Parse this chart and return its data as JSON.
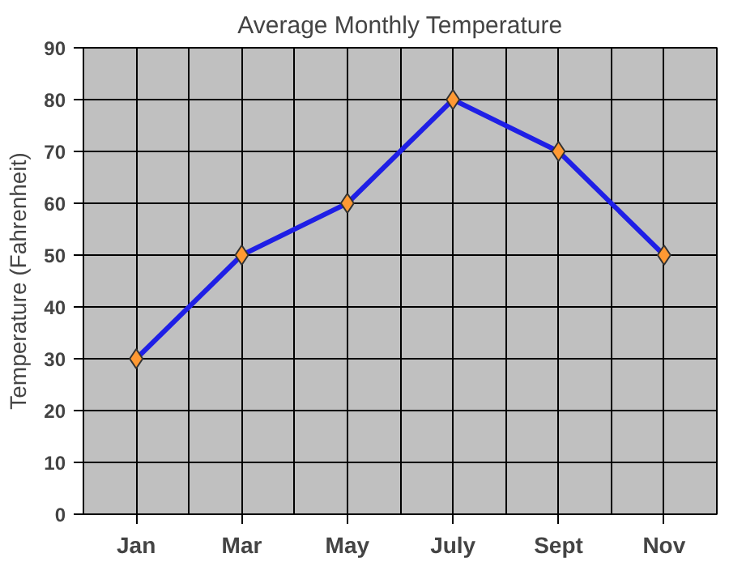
{
  "chart_data": {
    "type": "line",
    "title": "Average Monthly Temperature",
    "ylabel": "Temperature (Fahrenheit)",
    "categories": [
      "Jan",
      "Mar",
      "May",
      "July",
      "Sept",
      "Nov"
    ],
    "series": [
      {
        "color": "#1f1fe6",
        "values": [
          30,
          50,
          60,
          80,
          70,
          50
        ]
      }
    ],
    "ylim": [
      0,
      90
    ],
    "yticks": [
      0,
      10,
      20,
      30,
      40,
      50,
      60,
      70,
      80,
      90
    ],
    "grid": true,
    "marker": "diamond",
    "line_style": "solid"
  }
}
